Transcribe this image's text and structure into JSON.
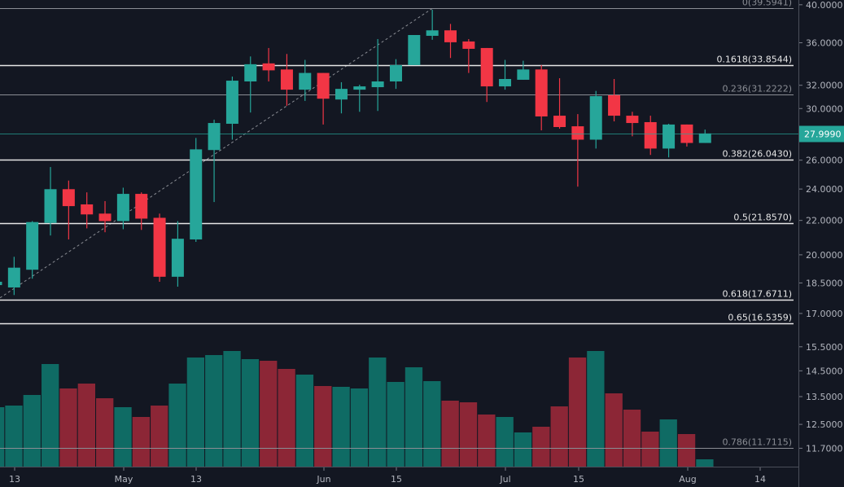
{
  "chart_data": {
    "type": "candlestick",
    "yscale": "log",
    "grid": false,
    "colors": {
      "background": "#131722",
      "up": "#26a69a",
      "down": "#f23645",
      "volume_up": "#0f6b64",
      "volume_down": "#8c2636",
      "axis_text": "#b2b5be",
      "fib_bright": "#e6e6e6",
      "fib_dim": "#8a8d94"
    },
    "x_axis": {
      "tick_labels": [
        "13",
        "May",
        "13",
        "Jun",
        "15",
        "Jul",
        "15",
        "Aug",
        "14"
      ]
    },
    "y_axis": {
      "tick_labels": [
        "40.0000",
        "36.0000",
        "32.0000",
        "30.0000",
        "26.0000",
        "24.0000",
        "22.0000",
        "20.0000",
        "18.5000",
        "17.0000",
        "15.5000",
        "14.5000",
        "13.5000",
        "12.5000",
        "11.7000"
      ],
      "tick_values": [
        40,
        36,
        32,
        30,
        26,
        24,
        22,
        20,
        18.5,
        17,
        15.5,
        14.5,
        13.5,
        12.5,
        11.7
      ]
    },
    "last_price": {
      "value": 27.999,
      "label": "27.9990"
    },
    "fib_levels": [
      {
        "label": "0(39.5941)",
        "price": 39.5941,
        "style": "dim"
      },
      {
        "label": "0.1618(33.8544)",
        "price": 33.8544,
        "style": "bright"
      },
      {
        "label": "0.236(31.2222)",
        "price": 31.2222,
        "style": "dim"
      },
      {
        "label": "0.382(26.0430)",
        "price": 26.043,
        "style": "bright"
      },
      {
        "label": "0.5(21.8570)",
        "price": 21.857,
        "style": "bright"
      },
      {
        "label": "0.618(17.6711)",
        "price": 17.6711,
        "style": "bright"
      },
      {
        "label": "0.65(16.5359)",
        "price": 16.5359,
        "style": "bright"
      },
      {
        "label": "0.786(11.7115)",
        "price": 11.7115,
        "style": "dim"
      }
    ],
    "candles": [
      {
        "o": 18.39,
        "h": 18.69,
        "l": 18.31,
        "c": 18.56,
        "v": 73
      },
      {
        "o": 18.27,
        "h": 19.89,
        "l": 17.89,
        "c": 19.3,
        "v": 75
      },
      {
        "o": 19.19,
        "h": 21.96,
        "l": 18.72,
        "c": 21.9,
        "v": 88
      },
      {
        "o": 21.85,
        "h": 25.51,
        "l": 21.1,
        "c": 23.99,
        "v": 126
      },
      {
        "o": 23.99,
        "h": 24.57,
        "l": 20.87,
        "c": 22.89,
        "v": 96
      },
      {
        "o": 23.0,
        "h": 23.78,
        "l": 21.52,
        "c": 22.37,
        "v": 102
      },
      {
        "o": 22.42,
        "h": 23.21,
        "l": 21.29,
        "c": 21.96,
        "v": 84
      },
      {
        "o": 21.96,
        "h": 24.09,
        "l": 21.47,
        "c": 23.68,
        "v": 73
      },
      {
        "o": 23.68,
        "h": 23.78,
        "l": 21.43,
        "c": 22.11,
        "v": 61
      },
      {
        "o": 22.16,
        "h": 22.42,
        "l": 18.56,
        "c": 18.82,
        "v": 75
      },
      {
        "o": 18.82,
        "h": 21.96,
        "l": 18.31,
        "c": 20.91,
        "v": 102
      },
      {
        "o": 20.87,
        "h": 27.65,
        "l": 20.73,
        "c": 26.79,
        "v": 134
      },
      {
        "o": 26.74,
        "h": 29.09,
        "l": 23.15,
        "c": 28.82,
        "v": 137
      },
      {
        "o": 28.76,
        "h": 32.78,
        "l": 27.52,
        "c": 32.41,
        "v": 142
      },
      {
        "o": 32.34,
        "h": 34.66,
        "l": 29.67,
        "c": 33.92,
        "v": 132
      },
      {
        "o": 34.0,
        "h": 35.48,
        "l": 32.34,
        "c": 33.35,
        "v": 130
      },
      {
        "o": 33.43,
        "h": 34.9,
        "l": 30.23,
        "c": 31.61,
        "v": 120
      },
      {
        "o": 31.61,
        "h": 34.33,
        "l": 30.64,
        "c": 33.11,
        "v": 113
      },
      {
        "o": 33.11,
        "h": 33.11,
        "l": 28.7,
        "c": 30.83,
        "v": 99
      },
      {
        "o": 30.76,
        "h": 32.27,
        "l": 29.6,
        "c": 31.68,
        "v": 98
      },
      {
        "o": 31.61,
        "h": 32.05,
        "l": 29.73,
        "c": 31.9,
        "v": 96
      },
      {
        "o": 31.83,
        "h": 36.37,
        "l": 29.8,
        "c": 32.34,
        "v": 134
      },
      {
        "o": 32.34,
        "h": 34.4,
        "l": 31.68,
        "c": 33.84,
        "v": 104
      },
      {
        "o": 33.84,
        "h": 36.78,
        "l": 33.84,
        "c": 36.78,
        "v": 122
      },
      {
        "o": 36.7,
        "h": 39.45,
        "l": 36.3,
        "c": 37.26,
        "v": 105
      },
      {
        "o": 37.26,
        "h": 37.93,
        "l": 34.51,
        "c": 36.05,
        "v": 81
      },
      {
        "o": 36.13,
        "h": 36.37,
        "l": 33.11,
        "c": 35.4,
        "v": 79
      },
      {
        "o": 35.48,
        "h": 35.48,
        "l": 30.55,
        "c": 31.9,
        "v": 64
      },
      {
        "o": 31.9,
        "h": 34.33,
        "l": 31.61,
        "c": 32.56,
        "v": 61
      },
      {
        "o": 32.49,
        "h": 34.25,
        "l": 32.49,
        "c": 33.43,
        "v": 42
      },
      {
        "o": 33.43,
        "h": 33.84,
        "l": 28.24,
        "c": 29.35,
        "v": 49
      },
      {
        "o": 29.41,
        "h": 32.63,
        "l": 28.37,
        "c": 28.5,
        "v": 74
      },
      {
        "o": 28.56,
        "h": 29.54,
        "l": 24.16,
        "c": 27.52,
        "v": 134
      },
      {
        "o": 27.52,
        "h": 31.5,
        "l": 26.85,
        "c": 31.05,
        "v": 142
      },
      {
        "o": 31.13,
        "h": 32.56,
        "l": 28.95,
        "c": 29.41,
        "v": 90
      },
      {
        "o": 29.41,
        "h": 29.73,
        "l": 27.78,
        "c": 28.82,
        "v": 70
      },
      {
        "o": 28.89,
        "h": 29.41,
        "l": 26.38,
        "c": 26.85,
        "v": 43
      },
      {
        "o": 26.85,
        "h": 28.76,
        "l": 26.2,
        "c": 28.7,
        "v": 58
      },
      {
        "o": 28.7,
        "h": 28.7,
        "l": 27.0,
        "c": 27.27,
        "v": 40
      },
      {
        "o": 27.27,
        "h": 28.3,
        "l": 27.27,
        "c": 27.999,
        "v": 9
      }
    ]
  }
}
